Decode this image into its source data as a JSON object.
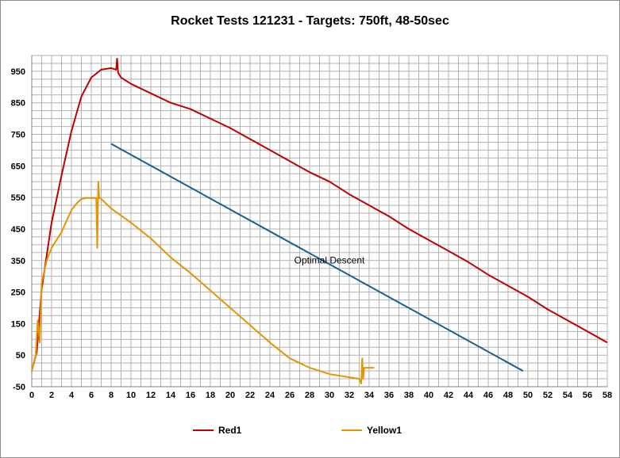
{
  "chart_data": {
    "type": "line",
    "title": "Rocket Tests 121231 - Targets: 750ft, 48-50sec",
    "xlabel": "",
    "ylabel": "",
    "xlim": [
      0,
      58
    ],
    "ylim": [
      -50,
      1000
    ],
    "x_ticks": [
      "0",
      "2",
      "4",
      "6",
      "8",
      "10",
      "12",
      "14",
      "16",
      "18",
      "20",
      "22",
      "24",
      "26",
      "28",
      "30",
      "32",
      "34",
      "36",
      "38",
      "40",
      "42",
      "44",
      "46",
      "48",
      "50",
      "52",
      "54",
      "56",
      "58"
    ],
    "y_ticks": [
      "-50",
      "50",
      "150",
      "250",
      "350",
      "450",
      "550",
      "650",
      "750",
      "850",
      "950"
    ],
    "grid": true,
    "legend_position": "bottom",
    "series": [
      {
        "name": "Red1",
        "color": "#c00000",
        "x": [
          0,
          0.5,
          1,
          2,
          3,
          4,
          5,
          6,
          7,
          8,
          8.5,
          8.6,
          8.7,
          9,
          10,
          12,
          14,
          16,
          18,
          20,
          22,
          24,
          26,
          28,
          30,
          32,
          34,
          36,
          38,
          40,
          42,
          44,
          46,
          48,
          50,
          52,
          54,
          56,
          58
        ],
        "y": [
          0,
          60,
          260,
          470,
          620,
          760,
          870,
          930,
          955,
          960,
          955,
          990,
          945,
          930,
          910,
          880,
          850,
          830,
          800,
          770,
          735,
          700,
          665,
          630,
          600,
          560,
          525,
          490,
          450,
          415,
          380,
          345,
          305,
          270,
          235,
          195,
          160,
          125,
          90
        ]
      },
      {
        "name": "Yellow1",
        "color": "#e69500",
        "x": [
          0,
          0.4,
          0.6,
          0.8,
          1,
          1.5,
          2,
          3,
          4,
          4.5,
          5,
          5.5,
          6,
          6.5,
          6.6,
          6.7,
          6.8,
          6.9,
          7,
          7.5,
          8,
          10,
          12,
          14,
          16,
          18,
          20,
          22,
          24,
          26,
          28,
          30,
          32,
          33,
          33.2,
          33.3,
          33.4,
          33.5,
          34.5
        ],
        "y": [
          0,
          50,
          160,
          90,
          280,
          350,
          390,
          440,
          510,
          530,
          545,
          548,
          548,
          548,
          390,
          600,
          548,
          548,
          545,
          530,
          515,
          470,
          420,
          360,
          310,
          255,
          200,
          145,
          90,
          40,
          10,
          -10,
          -20,
          -25,
          -40,
          40,
          -25,
          10,
          10
        ]
      },
      {
        "name": "",
        "color": "#17608f",
        "x": [
          8,
          49.5
        ],
        "y": [
          720,
          0
        ]
      }
    ],
    "annotations": [
      {
        "text": "Optimal Descent",
        "x": 30,
        "y": 340
      }
    ]
  }
}
